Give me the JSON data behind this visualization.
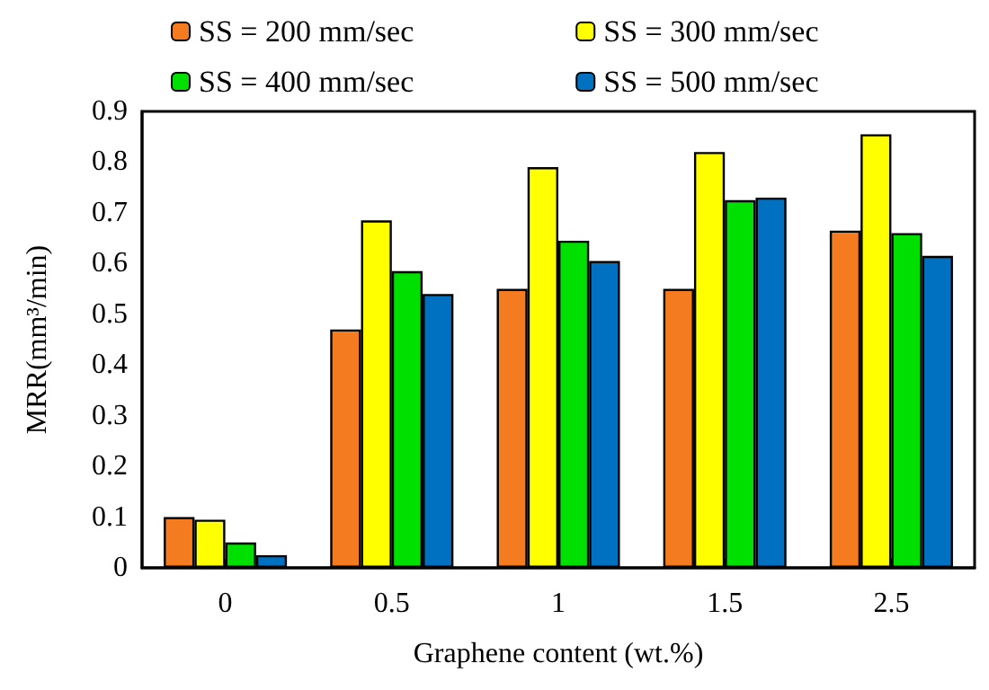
{
  "chart_data": {
    "type": "bar",
    "xlabel": "Graphene content (wt.%)",
    "ylabel": "MRR(mm³/min)",
    "categories": [
      "0",
      "0.5",
      "1",
      "1.5",
      "2.5"
    ],
    "series": [
      {
        "name": "SS = 200 mm/sec",
        "color": "#f47b20",
        "values": [
          0.1,
          0.47,
          0.55,
          0.55,
          0.665
        ]
      },
      {
        "name": "SS = 300 mm/sec",
        "color": "#ffff00",
        "values": [
          0.095,
          0.685,
          0.79,
          0.82,
          0.855
        ]
      },
      {
        "name": "SS = 400 mm/sec",
        "color": "#00e000",
        "values": [
          0.05,
          0.585,
          0.645,
          0.725,
          0.66
        ]
      },
      {
        "name": "SS = 500 mm/sec",
        "color": "#0070c0",
        "values": [
          0.025,
          0.54,
          0.605,
          0.73,
          0.615
        ]
      }
    ],
    "ylim": [
      0,
      0.9
    ],
    "yticks": [
      0,
      0.1,
      0.2,
      0.3,
      0.4,
      0.5,
      0.6,
      0.7,
      0.8,
      0.9
    ],
    "grid": false,
    "legend": "top"
  }
}
